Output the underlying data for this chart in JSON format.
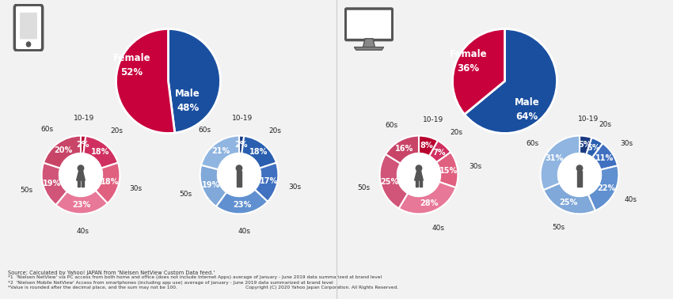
{
  "mobile": {
    "gender": {
      "male": 48,
      "female": 52
    },
    "female_age": [
      2,
      18,
      18,
      23,
      19,
      20
    ],
    "male_age": [
      2,
      18,
      17,
      23,
      19,
      21
    ]
  },
  "pc": {
    "gender": {
      "male": 64,
      "female": 36
    },
    "female_age": [
      8,
      7,
      15,
      28,
      25,
      16
    ],
    "male_age": [
      5,
      5,
      11,
      22,
      25,
      31
    ]
  },
  "age_labels": [
    "10-19",
    "20s",
    "30s",
    "40s",
    "50s",
    "60s"
  ],
  "female_pcts_mobile": [
    "2%",
    "18%",
    "18%",
    "23%",
    "19%",
    "20%"
  ],
  "male_pcts_mobile": [
    "2%",
    "18%",
    "17%",
    "23%",
    "19%",
    "21%"
  ],
  "female_pcts_pc": [
    "8%",
    "7%",
    "15%",
    "28%",
    "25%",
    "16%"
  ],
  "male_pcts_pc": [
    "5%",
    "5%",
    "11%",
    "22%",
    "25%",
    "31%"
  ],
  "male_color": "#1a4fa0",
  "female_color": "#c8003c",
  "female_donut_colors_mobile": [
    "#b8002e",
    "#d03060",
    "#e06080",
    "#e87898",
    "#d05578",
    "#c84568"
  ],
  "female_donut_colors_pc": [
    "#b8002e",
    "#d03060",
    "#e06080",
    "#e87898",
    "#d05578",
    "#c84568"
  ],
  "male_donut_colors_mobile": [
    "#1a3a80",
    "#2a5fb0",
    "#4070c0",
    "#6090d0",
    "#80a8d8",
    "#90b5e0"
  ],
  "male_donut_colors_pc": [
    "#1a3a80",
    "#2a5fb0",
    "#4070c0",
    "#6090d0",
    "#80a8d8",
    "#90b5e0"
  ],
  "bg_color": "#f2f2f2",
  "footnotes": [
    "Source: Calculated by Yahoo! JAPAN from 'Nielsen NetView Custom Data feed.'",
    "*1  'Nielsen NetView' via PC access from both home and office (does not include Internet Apps) average of January - June 2019 data summarized at brand level",
    "*2  'Nielsen Mobile NetView' Access from smartphones (including app use) average of January - June 2019 data summarized at brand level",
    "*Value is rounded after the decimal place, and the sum may not be 100.                                              Copyright (C) 2020 Yahoo Japan Corporation. All Rights Reserved."
  ]
}
